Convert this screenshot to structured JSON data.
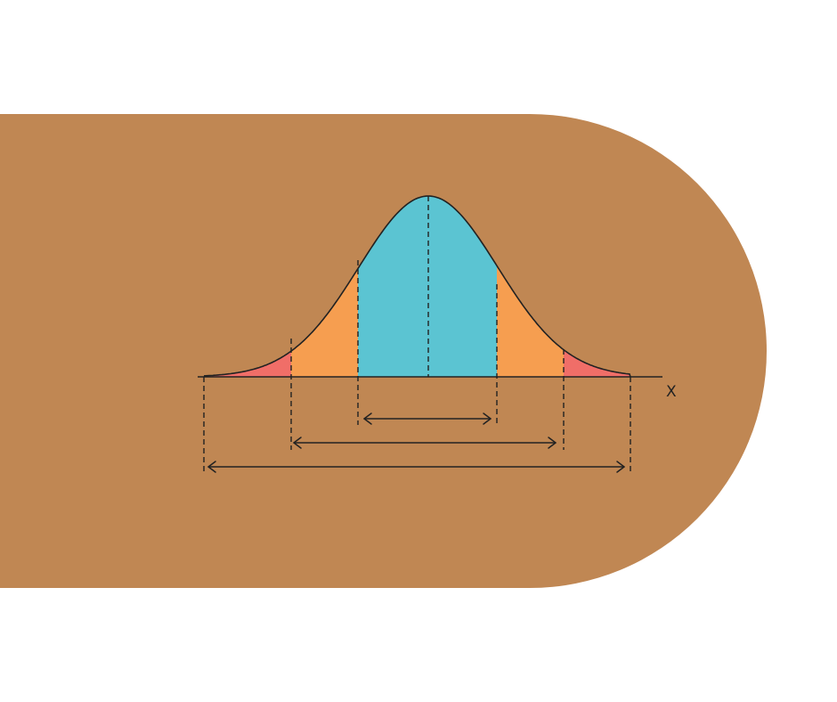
{
  "diagram": {
    "axis_label": "X"
  },
  "colors": {
    "background": "#ffffff",
    "band": "#C08753",
    "center_region": "#5BC4D2",
    "middle_region": "#F69E50",
    "outer_region": "#F06E68",
    "line": "#222222"
  }
}
